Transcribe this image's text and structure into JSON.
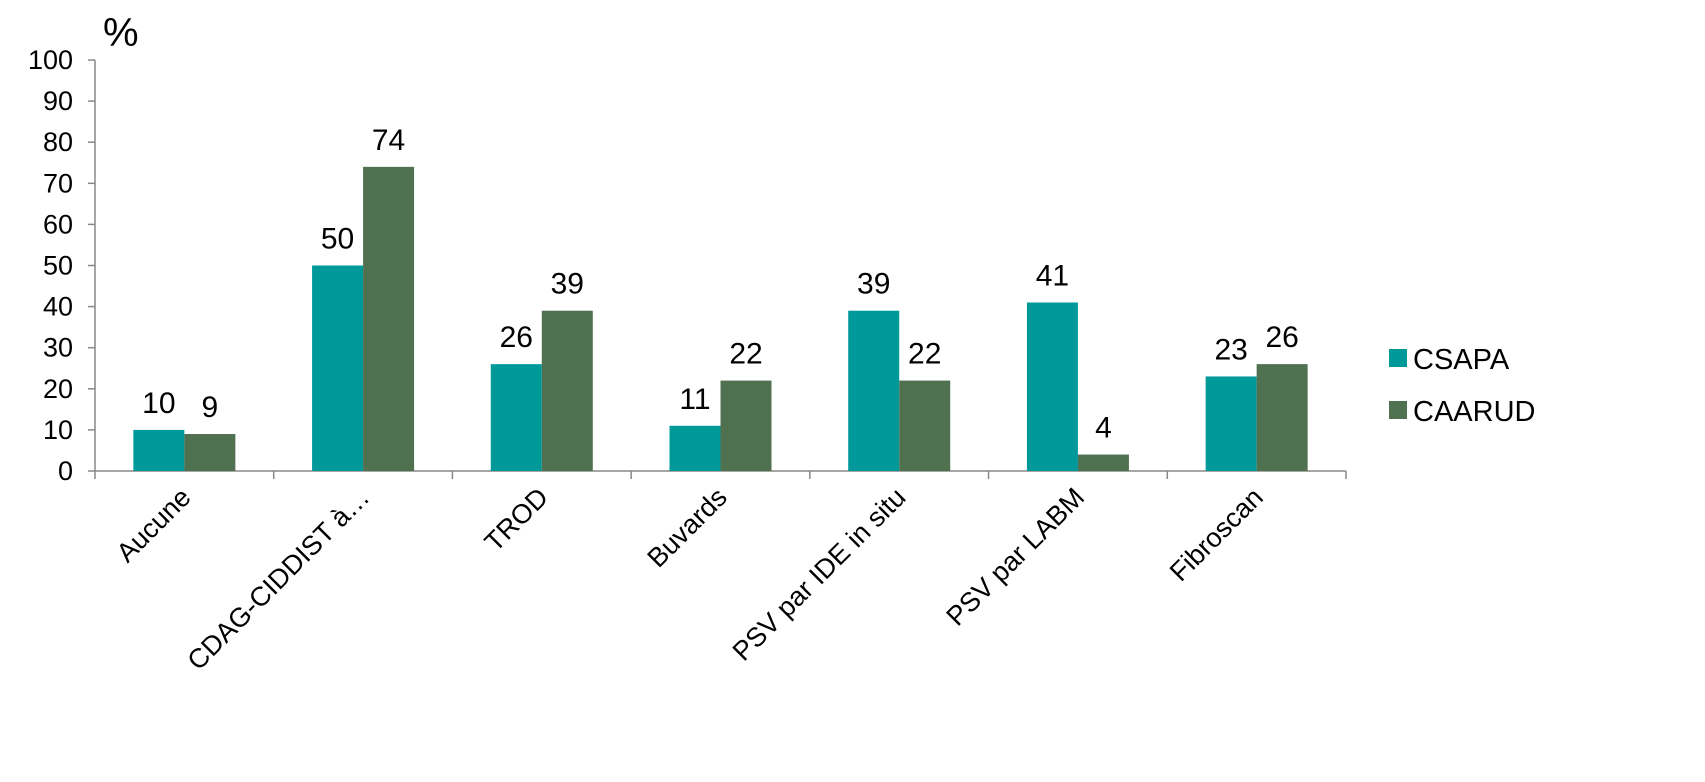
{
  "chart_data": {
    "type": "bar",
    "unit_label": "%",
    "categories": [
      "Aucune",
      "CDAG-CIDDIST à…",
      "TROD",
      "Buvards",
      "PSV par IDE in situ",
      "PSV par LABM",
      "Fibroscan"
    ],
    "series": [
      {
        "name": "CSAPA",
        "color": "#009999",
        "values": [
          10,
          50,
          26,
          11,
          39,
          41,
          23
        ]
      },
      {
        "name": "CAARUD",
        "color": "#4f7150",
        "values": [
          9,
          74,
          39,
          22,
          22,
          4,
          26
        ]
      }
    ],
    "y_ticks": [
      "0",
      "10",
      "20",
      "30",
      "40",
      "50",
      "60",
      "70",
      "80",
      "90",
      "100"
    ],
    "ylim": [
      0,
      100
    ],
    "grid": false,
    "legend_position": "right",
    "data_labels": true
  }
}
